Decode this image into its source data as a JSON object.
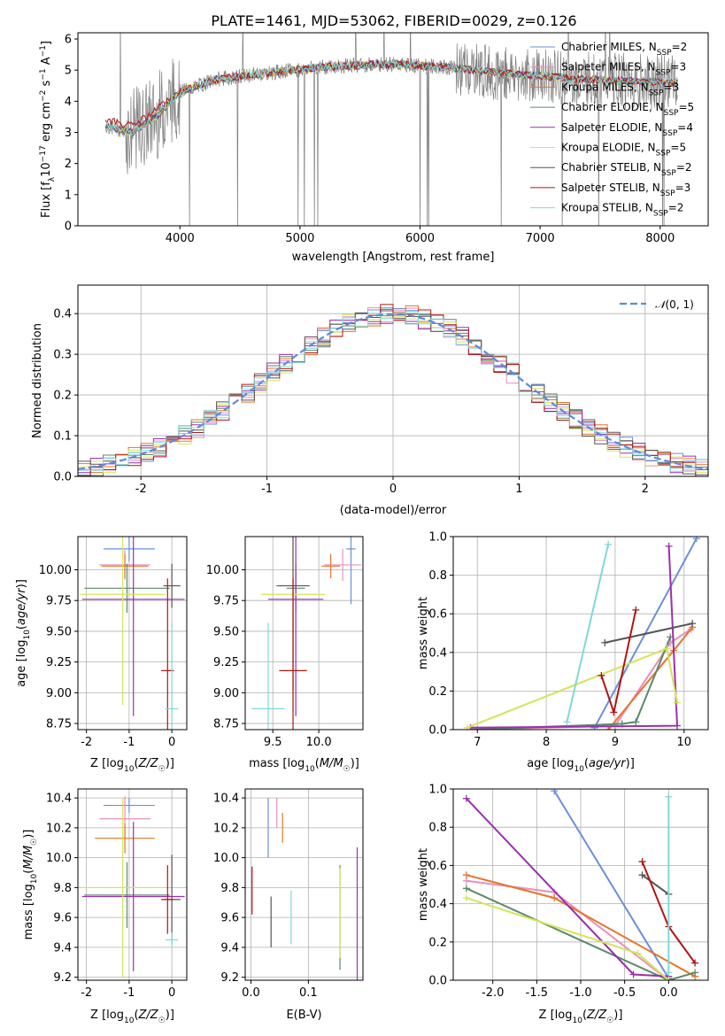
{
  "title": "PLATE=1461, MJD=53062, FIBERID=0029, z=0.126",
  "models": [
    {
      "name": "Chabrier MILES, N$_{SSP}$=2",
      "label": "Chabrier MILES, N",
      "sub": "SSP",
      "suffix": "=2",
      "color": "#6a8fd8"
    },
    {
      "name": "Salpeter MILES, N$_{SSP}$=3",
      "label": "Salpeter MILES, N",
      "sub": "SSP",
      "suffix": "=3",
      "color": "#e88fbf"
    },
    {
      "name": "Kroupa MILES, N$_{SSP}$=3",
      "label": "Kroupa MILES, N",
      "sub": "SSP",
      "suffix": "=3",
      "color": "#e5752a"
    },
    {
      "name": "Chabrier ELODIE, N$_{SSP}$=5",
      "label": "Chabrier ELODIE, N",
      "sub": "SSP",
      "suffix": "=5",
      "color": "#5a8a6a"
    },
    {
      "name": "Salpeter ELODIE, N$_{SSP}$=4",
      "label": "Salpeter ELODIE, N",
      "sub": "SSP",
      "suffix": "=4",
      "color": "#9b2fae"
    },
    {
      "name": "Kroupa ELODIE, N$_{SSP}$=5",
      "label": "Kroupa ELODIE, N",
      "sub": "SSP",
      "suffix": "=5",
      "color": "#d4e45a"
    },
    {
      "name": "Chabrier STELIB, N$_{SSP}$=2",
      "label": "Chabrier STELIB, N",
      "sub": "SSP",
      "suffix": "=2",
      "color": "#555555"
    },
    {
      "name": "Salpeter STELIB, N$_{SSP}$=3",
      "label": "Salpeter STELIB, N",
      "sub": "SSP",
      "suffix": "=3",
      "color": "#b01515"
    },
    {
      "name": "Kroupa STELIB, N$_{SSP}$=2",
      "label": "Kroupa STELIB, N",
      "sub": "SSP",
      "suffix": "=2",
      "color": "#7fd8d8"
    }
  ],
  "chart_data": [
    {
      "id": "spectrum",
      "type": "line",
      "xlabel": "wavelength [Angstrom, rest frame]",
      "ylabel": "Flux [f_λ 10^-17 erg cm^-2 s^-1 A^-1]",
      "xlim": [
        3150,
        8400
      ],
      "ylim": [
        0,
        6.2
      ],
      "xticks": [
        4000,
        5000,
        6000,
        7000,
        8000
      ],
      "yticks": [
        0,
        1,
        2,
        3,
        4,
        5,
        6
      ],
      "grid": false,
      "legend": "top-right",
      "data_color": "#808080",
      "continuum": {
        "x": [
          3380,
          3600,
          3800,
          4000,
          4300,
          4700,
          5200,
          5700,
          6200,
          6700,
          7200,
          7700,
          8100
        ],
        "y": [
          3.2,
          3.0,
          3.5,
          4.3,
          4.7,
          4.9,
          5.1,
          5.2,
          5.1,
          4.9,
          4.75,
          4.65,
          4.6
        ]
      }
    },
    {
      "id": "residuals",
      "type": "line",
      "xlabel": "(data-model)/error",
      "ylabel": "Normed distribution",
      "xlim": [
        -2.5,
        2.5
      ],
      "ylim": [
        0,
        0.47
      ],
      "xticks": [
        -2,
        -1,
        0,
        1,
        2
      ],
      "yticks": [
        0.0,
        0.1,
        0.2,
        0.3,
        0.4
      ],
      "grid": true,
      "legend": "top-right",
      "reference": {
        "name": "$\\mathcal{N}(0, 1)$",
        "color": "#5f8ad6",
        "style": "dashed"
      }
    },
    {
      "id": "age-vs-Z",
      "type": "scatter",
      "xlabel": "Z [log10(Z/Z☉)]",
      "ylabel": "age [log10(age/yr)]",
      "xlim": [
        -2.2,
        0.35
      ],
      "ylim": [
        8.7,
        10.27
      ],
      "xticks": [
        -2,
        -1,
        0
      ],
      "yticks": [
        8.75,
        9.0,
        9.25,
        9.5,
        9.75,
        10.0
      ],
      "grid": true,
      "points": [
        {
          "model": 0,
          "x": -1.0,
          "xerr": 0.6,
          "y": 10.17,
          "yerr": 0.1
        },
        {
          "model": 1,
          "x": -1.1,
          "xerr": 0.6,
          "y": 10.04,
          "yerr": 0.12
        },
        {
          "model": 2,
          "x": -1.1,
          "xerr": 0.55,
          "y": 10.03,
          "yerr": 0.1
        },
        {
          "model": 3,
          "x": -1.05,
          "xerr": 1.0,
          "y": 9.85,
          "yerr": 0.2
        },
        {
          "model": 4,
          "x": -0.9,
          "xerr": 1.2,
          "y": 9.76,
          "yerr": 0.95
        },
        {
          "model": 5,
          "x": -1.15,
          "xerr": 1.0,
          "y": 9.8,
          "yerr": 0.9
        },
        {
          "model": 6,
          "x": 0.0,
          "xerr": 0.2,
          "y": 9.87,
          "yerr": 0.18
        },
        {
          "model": 7,
          "x": -0.1,
          "xerr": 0.15,
          "y": 9.18,
          "yerr": 0.75
        },
        {
          "model": 8,
          "x": 0.0,
          "xerr": 0.15,
          "y": 8.87,
          "yerr": 0.7
        }
      ]
    },
    {
      "id": "age-vs-mass",
      "type": "scatter",
      "xlabel": "mass [log10(M/M☉)]",
      "ylabel": "",
      "xlim": [
        9.2,
        10.48
      ],
      "ylim": [
        8.7,
        10.27
      ],
      "xticks": [
        9.5,
        10.0
      ],
      "yticks": [
        8.75,
        9.0,
        9.25,
        9.5,
        9.75,
        10.0
      ],
      "grid": true,
      "points": [
        {
          "model": 0,
          "x": 10.35,
          "xerr": 0.05,
          "y": 10.17,
          "yerr": 0.45
        },
        {
          "model": 1,
          "x": 10.26,
          "xerr": 0.2,
          "y": 10.04,
          "yerr": 0.13
        },
        {
          "model": 2,
          "x": 10.13,
          "xerr": 0.1,
          "y": 10.03,
          "yerr": 0.1
        },
        {
          "model": 3,
          "x": 9.75,
          "xerr": 0.1,
          "y": 9.85,
          "yerr": 0.2
        },
        {
          "model": 4,
          "x": 9.75,
          "xerr": 0.3,
          "y": 9.76,
          "yerr": 0.95
        },
        {
          "model": 5,
          "x": 9.72,
          "xerr": 0.35,
          "y": 9.8,
          "yerr": 0.95
        },
        {
          "model": 6,
          "x": 9.72,
          "xerr": 0.18,
          "y": 9.87,
          "yerr": 0.85
        },
        {
          "model": 7,
          "x": 9.72,
          "xerr": 0.15,
          "y": 9.18,
          "yerr": 0.75
        },
        {
          "model": 8,
          "x": 9.45,
          "xerr": 0.18,
          "y": 8.87,
          "yerr": 0.7
        }
      ]
    },
    {
      "id": "weight-vs-age",
      "type": "line",
      "xlabel": "age [log10(age/yr)]",
      "ylabel": "mass weight",
      "xlim": [
        6.65,
        10.35
      ],
      "ylim": [
        0,
        1.0
      ],
      "xticks": [
        7,
        8,
        9,
        10
      ],
      "yticks": [
        0.0,
        0.2,
        0.4,
        0.6,
        0.8,
        1.0
      ],
      "grid": true,
      "series": [
        {
          "model": 0,
          "x": [
            8.7,
            10.18
          ],
          "y": [
            0.01,
            0.99
          ]
        },
        {
          "model": 1,
          "x": [
            7.0,
            9.0,
            9.8,
            10.1
          ],
          "y": [
            0.0,
            0.02,
            0.45,
            0.52
          ]
        },
        {
          "model": 2,
          "x": [
            8.9,
            9.85,
            10.12
          ],
          "y": [
            0.0,
            0.41,
            0.53
          ]
        },
        {
          "model": 3,
          "x": [
            6.9,
            9.1,
            9.3,
            9.8
          ],
          "y": [
            0.0,
            0.03,
            0.04,
            0.48
          ]
        },
        {
          "model": 4,
          "x": [
            6.9,
            9.9,
            9.78
          ],
          "y": [
            0.01,
            0.02,
            0.95
          ]
        },
        {
          "model": 5,
          "x": [
            6.85,
            9.75,
            9.9
          ],
          "y": [
            0.01,
            0.42,
            0.14
          ]
        },
        {
          "model": 6,
          "x": [
            8.85,
            10.12
          ],
          "y": [
            0.45,
            0.55
          ]
        },
        {
          "model": 7,
          "x": [
            8.8,
            8.98,
            9.3
          ],
          "y": [
            0.28,
            0.09,
            0.62
          ]
        },
        {
          "model": 8,
          "x": [
            8.3,
            8.9
          ],
          "y": [
            0.04,
            0.96
          ]
        }
      ]
    },
    {
      "id": "mass-vs-Z",
      "type": "scatter",
      "xlabel": "Z [log10(Z/Z☉)]",
      "ylabel": "mass [log10(M/M☉)]",
      "xlim": [
        -2.2,
        0.35
      ],
      "ylim": [
        9.18,
        10.46
      ],
      "xticks": [
        -2,
        -1,
        0
      ],
      "yticks": [
        9.2,
        9.4,
        9.6,
        9.8,
        10.0,
        10.2,
        10.4
      ],
      "grid": true,
      "points": [
        {
          "model": 0,
          "x": -1.0,
          "xerr": 0.6,
          "y": 10.35,
          "yerr": 0.05
        },
        {
          "model": 1,
          "x": -1.1,
          "xerr": 0.6,
          "y": 10.26,
          "yerr": 0.15
        },
        {
          "model": 2,
          "x": -1.1,
          "xerr": 0.7,
          "y": 10.13,
          "yerr": 0.1
        },
        {
          "model": 3,
          "x": -1.05,
          "xerr": 1.0,
          "y": 9.75,
          "yerr": 0.22
        },
        {
          "model": 4,
          "x": -0.9,
          "xerr": 1.2,
          "y": 9.74,
          "yerr": 0.5
        },
        {
          "model": 5,
          "x": -1.15,
          "xerr": 1.0,
          "y": 9.8,
          "yerr": 0.6
        },
        {
          "model": 6,
          "x": 0.0,
          "xerr": 0.2,
          "y": 9.72,
          "yerr": 0.3
        },
        {
          "model": 7,
          "x": -0.1,
          "xerr": 0.15,
          "y": 9.72,
          "yerr": 0.23
        },
        {
          "model": 8,
          "x": 0.0,
          "xerr": 0.15,
          "y": 9.45,
          "yerr": 0.05
        }
      ]
    },
    {
      "id": "mass-vs-ebv",
      "type": "scatter",
      "xlabel": "E(B-V)",
      "ylabel": "",
      "xlim": [
        -0.01,
        0.195
      ],
      "ylim": [
        9.18,
        10.46
      ],
      "xticks": [
        0.0,
        0.1
      ],
      "yticks": [
        9.2,
        9.4,
        9.6,
        9.8,
        10.0,
        10.2,
        10.4
      ],
      "grid": true,
      "points": [
        {
          "model": 0,
          "x": 0.03,
          "xerr": 0,
          "y": 10.2,
          "yerr": 0.2
        },
        {
          "model": 1,
          "x": 0.045,
          "xerr": 0,
          "y": 10.3,
          "yerr": 0.1
        },
        {
          "model": 2,
          "x": 0.055,
          "xerr": 0,
          "y": 10.2,
          "yerr": 0.1
        },
        {
          "model": 3,
          "x": 0.155,
          "xerr": 0,
          "y": 9.6,
          "yerr": 0.35
        },
        {
          "model": 4,
          "x": 0.185,
          "xerr": 0,
          "y": 9.6,
          "yerr": 0.47
        },
        {
          "model": 5,
          "x": 0.155,
          "xerr": 0,
          "y": 9.63,
          "yerr": 0.3
        },
        {
          "model": 6,
          "x": 0.035,
          "xerr": 0,
          "y": 9.57,
          "yerr": 0.17
        },
        {
          "model": 7,
          "x": 0.002,
          "xerr": 0,
          "y": 9.78,
          "yerr": 0.16
        },
        {
          "model": 8,
          "x": 0.07,
          "xerr": 0,
          "y": 9.6,
          "yerr": 0.18
        }
      ]
    },
    {
      "id": "weight-vs-Z",
      "type": "line",
      "xlabel": "Z [log10(Z/Z☉)]",
      "ylabel": "mass weight",
      "xlim": [
        -2.45,
        0.45
      ],
      "ylim": [
        0,
        1.0
      ],
      "xticks": [
        -2.0,
        -1.5,
        -1.0,
        -0.5,
        0.0
      ],
      "yticks": [
        0.0,
        0.2,
        0.4,
        0.6,
        0.8,
        1.0
      ],
      "grid": true,
      "series": [
        {
          "model": 0,
          "x": [
            -1.3,
            0.0
          ],
          "y": [
            0.99,
            0.01
          ]
        },
        {
          "model": 1,
          "x": [
            -2.3,
            -1.3,
            0.0
          ],
          "y": [
            0.52,
            0.46,
            0.0
          ]
        },
        {
          "model": 2,
          "x": [
            -2.3,
            -1.3,
            0.3
          ],
          "y": [
            0.55,
            0.43,
            0.02
          ]
        },
        {
          "model": 3,
          "x": [
            -2.3,
            0.0,
            0.3
          ],
          "y": [
            0.48,
            0.0,
            0.04
          ]
        },
        {
          "model": 4,
          "x": [
            -2.3,
            -0.4,
            0.0
          ],
          "y": [
            0.95,
            0.03,
            0.02
          ]
        },
        {
          "model": 5,
          "x": [
            -2.3,
            -0.35,
            0.0
          ],
          "y": [
            0.43,
            0.14,
            0.0
          ]
        },
        {
          "model": 6,
          "x": [
            -0.3,
            0.0
          ],
          "y": [
            0.55,
            0.45
          ]
        },
        {
          "model": 7,
          "x": [
            -0.3,
            0.0,
            0.3
          ],
          "y": [
            0.62,
            0.28,
            0.09
          ]
        },
        {
          "model": 8,
          "x": [
            0.0,
            0.0
          ],
          "y": [
            0.04,
            0.96
          ]
        }
      ]
    }
  ]
}
